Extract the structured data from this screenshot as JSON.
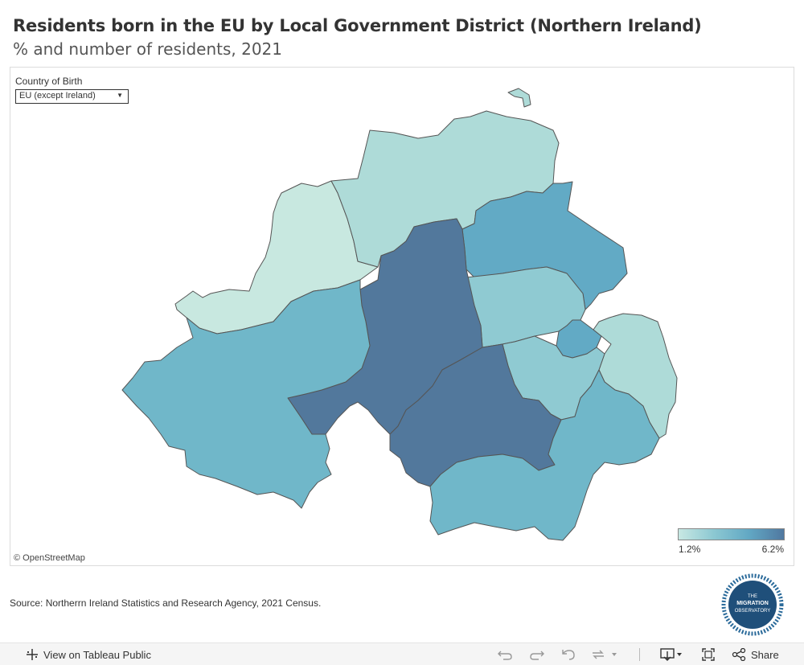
{
  "header": {
    "title": "Residents born in the EU by Local Government District (Northern Ireland)",
    "subtitle": "% and number of residents, 2021"
  },
  "filter": {
    "label": "Country of Birth",
    "selected": "EU (except Ireland)"
  },
  "map": {
    "attribution": "© OpenStreetMap",
    "colors": {
      "level1": "#c8e8e0",
      "level2": "#aedbd8",
      "level3": "#8fcad2",
      "level4": "#70b7c9",
      "level5": "#62aac5",
      "level6": "#52789c",
      "border": "#555555"
    }
  },
  "legend": {
    "min_label": "1.2%",
    "max_label": "6.2%"
  },
  "source": "Source: Northerrn Ireland Statistics and Research Agency, 2021 Census.",
  "logo": {
    "line1": "THE",
    "line2": "MIGRATION",
    "line3": "OBSERVATORY"
  },
  "toolbar": {
    "view_label": "View on Tableau Public",
    "share_label": "Share",
    "icons": [
      "undo-icon",
      "redo-icon",
      "revert-icon",
      "refresh-icon",
      "download-icon",
      "fullscreen-icon",
      "share-icon"
    ]
  }
}
